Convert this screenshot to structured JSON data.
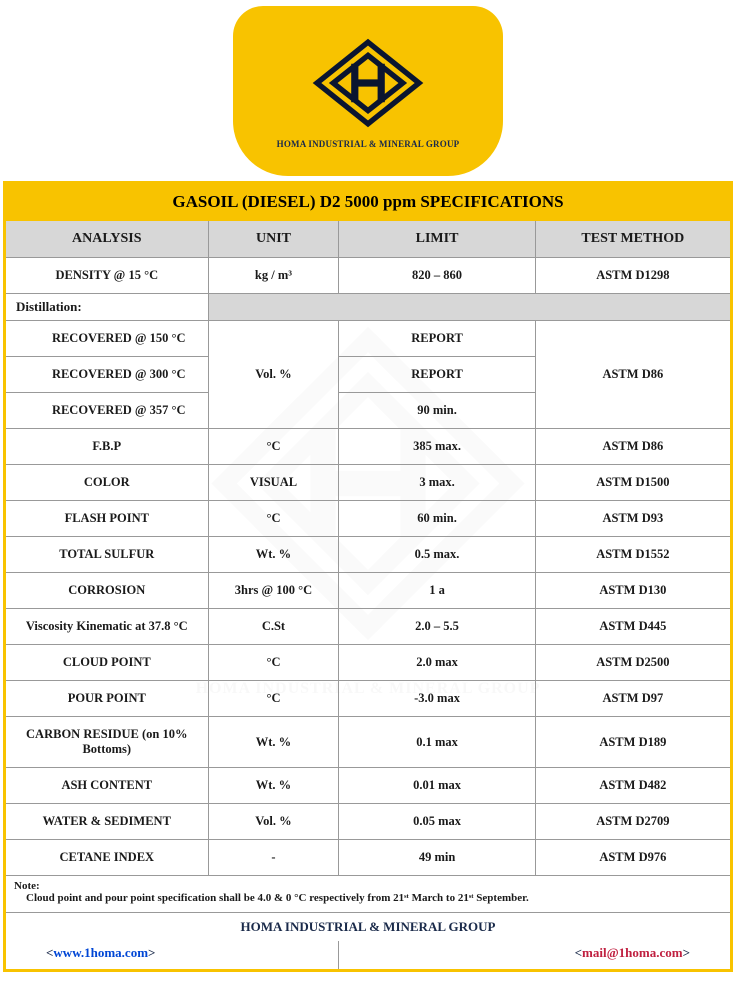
{
  "logo": {
    "company_name": "HOMA INDUSTRIAL & MINERAL GROUP",
    "bg_color": "#f8c300",
    "text_color": "#1a2a4a"
  },
  "watermark_text": "HOMA INDUSTRIAL & MINERAL GROUP",
  "table": {
    "title": "GASOIL (DIESEL) D2 5000 ppm SPECIFICATIONS",
    "accent_color": "#f8c300",
    "header_bg": "#d7d7d7",
    "border_color": "#999999",
    "headers": {
      "analysis": "ANALYSIS",
      "unit": "UNIT",
      "limit": "LIMIT",
      "test_method": "TEST METHOD"
    },
    "rows": [
      {
        "analysis": "DENSITY @ 15 °C",
        "unit": "kg / m³",
        "limit": "820 – 860",
        "method": "ASTM D1298"
      }
    ],
    "distillation": {
      "label": "Distillation:",
      "unit": "Vol. %",
      "method": "ASTM D86",
      "items": [
        {
          "analysis": "RECOVERED @ 150 °C",
          "limit": "REPORT"
        },
        {
          "analysis": "RECOVERED @ 300 °C",
          "limit": "REPORT"
        },
        {
          "analysis": "RECOVERED @ 357 °C",
          "limit": "90 min."
        }
      ]
    },
    "rows2": [
      {
        "analysis": "F.B.P",
        "unit": "°C",
        "limit": "385 max.",
        "method": "ASTM D86"
      },
      {
        "analysis": "COLOR",
        "unit": "VISUAL",
        "limit": "3 max.",
        "method": "ASTM D1500"
      },
      {
        "analysis": "FLASH POINT",
        "unit": "°C",
        "limit": "60 min.",
        "method": "ASTM D93"
      },
      {
        "analysis": "TOTAL SULFUR",
        "unit": "Wt. %",
        "limit": "0.5 max.",
        "method": "ASTM D1552"
      },
      {
        "analysis": "CORROSION",
        "unit": "3hrs @ 100 °C",
        "limit": "1 a",
        "method": "ASTM D130"
      },
      {
        "analysis": "Viscosity Kinematic at 37.8 °C",
        "unit": "C.St",
        "limit": "2.0 – 5.5",
        "method": "ASTM D445"
      },
      {
        "analysis": "CLOUD POINT",
        "unit": "°C",
        "limit": "2.0 max",
        "method": "ASTM D2500"
      },
      {
        "analysis": "POUR POINT",
        "unit": "°C",
        "limit": "-3.0 max",
        "method": "ASTM D97"
      },
      {
        "analysis": "CARBON RESIDUE (on 10% Bottoms)",
        "unit": "Wt. %",
        "limit": "0.1 max",
        "method": "ASTM D189"
      },
      {
        "analysis": "ASH CONTENT",
        "unit": "Wt. %",
        "limit": "0.01 max",
        "method": "ASTM D482"
      },
      {
        "analysis": "WATER & SEDIMENT",
        "unit": "Vol. %",
        "limit": "0.05 max",
        "method": "ASTM D2709"
      },
      {
        "analysis": "CETANE INDEX",
        "unit": "-",
        "limit": "49 min",
        "method": "ASTM D976"
      }
    ],
    "note": {
      "label": "Note:",
      "text": "Cloud point and pour point specification shall be 4.0 & 0 °C respectively from 21ˢᵗ March to 21ˢᵗ September."
    },
    "footer": {
      "company": "HOMA INDUSTRIAL & MINERAL GROUP",
      "website": "www.1homa.com",
      "email": "mail@1homa.com"
    }
  }
}
